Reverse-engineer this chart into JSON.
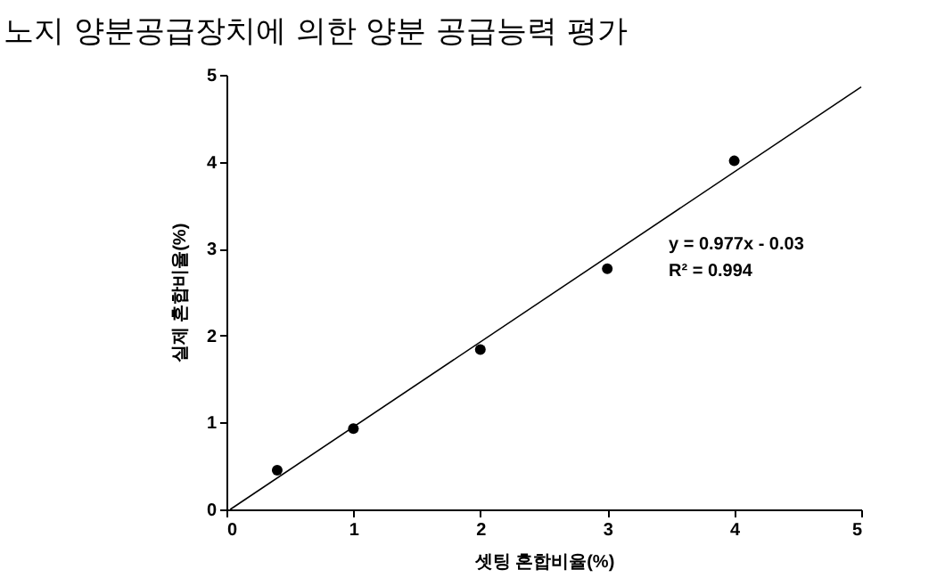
{
  "chart_data": {
    "type": "scatter",
    "title": "노지 양분공급장치에 의한 양분 공급능력 평가",
    "xlabel": "셋팅 혼합비율(%)",
    "ylabel": "실제 혼합비율(%)",
    "series": [
      {
        "color": "#000000",
        "marker": "circle",
        "x": [
          0.4,
          1,
          2,
          3,
          4
        ],
        "values": [
          0.45,
          0.93,
          1.84,
          2.77,
          4.01
        ]
      },
      {
        "type": "line",
        "color": "#000000",
        "line_style": "solid",
        "marker": "none",
        "x": [
          0.03,
          5
        ],
        "values": [
          0,
          4.86
        ]
      }
    ],
    "xlim": [
      0,
      5
    ],
    "ylim": [
      0,
      5
    ],
    "xticks": [
      0,
      1,
      2,
      3,
      4,
      5
    ],
    "yticks": [
      0,
      1,
      2,
      3,
      4,
      5
    ],
    "grid": false,
    "annotations": [
      "y = 0.977x - 0.03",
      "R² = 0.994"
    ]
  }
}
